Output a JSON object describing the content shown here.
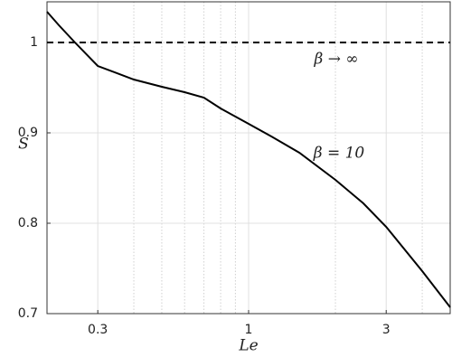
{
  "chart_data": {
    "type": "line",
    "xlabel": "Le",
    "ylabel": "S",
    "xscale": "log",
    "x": [
      0.2,
      0.22,
      0.25,
      0.3,
      0.4,
      0.5,
      0.6,
      0.7,
      0.8,
      1,
      1.2,
      1.5,
      2,
      2.5,
      3,
      4,
      5
    ],
    "series": [
      {
        "name": "β = 10",
        "color": "#000000",
        "values": [
          1.034,
          1.019,
          1.0,
          0.974,
          0.959,
          0.951,
          0.945,
          0.939,
          0.927,
          0.91,
          0.896,
          0.878,
          0.848,
          0.822,
          0.796,
          0.747,
          0.707
        ]
      }
    ],
    "hline": {
      "value": 1,
      "label": "β → ∞",
      "color": "#000000"
    },
    "xlim": [
      0.2,
      5
    ],
    "ylim": [
      0.7,
      1.045
    ],
    "xticks": [
      0.3,
      1,
      3
    ],
    "xminorticks": [
      0.4,
      0.5,
      0.6,
      0.7,
      0.8,
      0.9,
      2,
      4
    ],
    "yticks": [
      0.7,
      0.8,
      0.9,
      1
    ],
    "grid": true
  }
}
